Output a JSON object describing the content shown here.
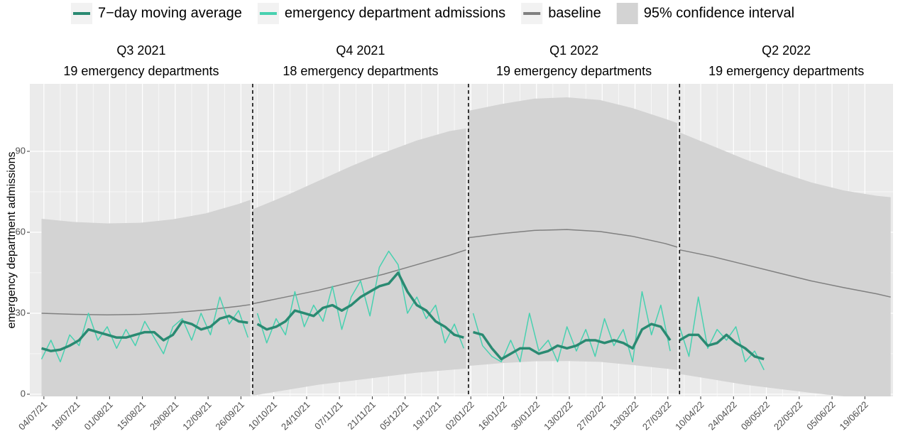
{
  "chart_data": {
    "type": "line",
    "y_label": "emergency department admissions",
    "xlim": [
      "2021-06-28",
      "2022-07-01"
    ],
    "ylim": [
      -0.8,
      115
    ],
    "yticks": [
      0,
      30,
      60,
      90
    ],
    "grid": true,
    "legend": "top",
    "xticks": [
      {
        "value": "2021-07-04",
        "label": "04/07/21"
      },
      {
        "value": "2021-07-18",
        "label": "18/07/21"
      },
      {
        "value": "2021-08-01",
        "label": "01/08/21"
      },
      {
        "value": "2021-08-15",
        "label": "15/08/21"
      },
      {
        "value": "2021-08-29",
        "label": "29/08/21"
      },
      {
        "value": "2021-09-12",
        "label": "12/09/21"
      },
      {
        "value": "2021-09-26",
        "label": "26/09/21"
      },
      {
        "value": "2021-10-10",
        "label": "10/10/21"
      },
      {
        "value": "2021-10-24",
        "label": "24/10/21"
      },
      {
        "value": "2021-11-07",
        "label": "07/11/21"
      },
      {
        "value": "2021-11-21",
        "label": "21/11/21"
      },
      {
        "value": "2021-12-05",
        "label": "05/12/21"
      },
      {
        "value": "2021-12-19",
        "label": "19/12/21"
      },
      {
        "value": "2022-01-02",
        "label": "02/01/22"
      },
      {
        "value": "2022-01-16",
        "label": "16/01/22"
      },
      {
        "value": "2022-01-30",
        "label": "30/01/22"
      },
      {
        "value": "2022-02-13",
        "label": "13/02/22"
      },
      {
        "value": "2022-02-27",
        "label": "27/02/22"
      },
      {
        "value": "2022-03-13",
        "label": "13/03/22"
      },
      {
        "value": "2022-03-27",
        "label": "27/03/22"
      },
      {
        "value": "2022-04-10",
        "label": "10/04/22"
      },
      {
        "value": "2022-04-24",
        "label": "24/04/22"
      },
      {
        "value": "2022-05-08",
        "label": "08/05/22"
      },
      {
        "value": "2022-05-22",
        "label": "22/05/22"
      },
      {
        "value": "2022-06-05",
        "label": "05/06/22"
      },
      {
        "value": "2022-06-19",
        "label": "19/06/22"
      }
    ],
    "vlines": [
      "2021-10-01",
      "2022-01-01",
      "2022-04-01"
    ],
    "panels": [
      {
        "title": "Q3 2021",
        "subtitle": "19 emergency departments"
      },
      {
        "title": "Q4 2021",
        "subtitle": "18 emergency departments"
      },
      {
        "title": "Q1 2022",
        "subtitle": "19 emergency departments"
      },
      {
        "title": "Q2 2022",
        "subtitle": "19 emergency departments"
      }
    ],
    "x": [
      "2021-07-03",
      "2021-07-07",
      "2021-07-11",
      "2021-07-15",
      "2021-07-19",
      "2021-07-23",
      "2021-07-27",
      "2021-07-31",
      "2021-08-04",
      "2021-08-08",
      "2021-08-12",
      "2021-08-16",
      "2021-08-20",
      "2021-08-24",
      "2021-08-28",
      "2021-09-01",
      "2021-09-05",
      "2021-09-09",
      "2021-09-13",
      "2021-09-17",
      "2021-09-21",
      "2021-09-25",
      "2021-09-29",
      "2021-10-03",
      "2021-10-07",
      "2021-10-11",
      "2021-10-15",
      "2021-10-19",
      "2021-10-23",
      "2021-10-27",
      "2021-10-31",
      "2021-11-04",
      "2021-11-08",
      "2021-11-12",
      "2021-11-16",
      "2021-11-20",
      "2021-11-24",
      "2021-11-28",
      "2021-12-02",
      "2021-12-06",
      "2021-12-10",
      "2021-12-14",
      "2021-12-18",
      "2021-12-22",
      "2021-12-26",
      "2021-12-30",
      "2022-01-03",
      "2022-01-07",
      "2022-01-11",
      "2022-01-15",
      "2022-01-19",
      "2022-01-23",
      "2022-01-27",
      "2022-01-31",
      "2022-02-04",
      "2022-02-08",
      "2022-02-12",
      "2022-02-16",
      "2022-02-20",
      "2022-02-24",
      "2022-02-28",
      "2022-03-04",
      "2022-03-08",
      "2022-03-12",
      "2022-03-16",
      "2022-03-20",
      "2022-03-24",
      "2022-03-28",
      "2022-04-01",
      "2022-04-05",
      "2022-04-09",
      "2022-04-13",
      "2022-04-17",
      "2022-04-21",
      "2022-04-25",
      "2022-04-29",
      "2022-05-03",
      "2022-05-07"
    ],
    "series": [
      {
        "name": "7−day moving average",
        "color": "#2a8a72",
        "values": [
          17,
          16,
          16.5,
          18,
          20,
          24,
          23,
          22,
          21,
          21,
          22,
          23,
          23,
          20,
          22,
          27,
          26,
          24,
          25,
          28,
          29,
          27,
          26.5,
          26,
          24,
          25,
          27,
          31,
          30,
          29,
          32,
          33,
          31,
          33,
          36,
          38,
          40,
          41,
          45,
          38,
          33,
          31,
          27,
          25,
          22,
          21,
          23,
          22,
          17,
          13,
          15,
          17,
          17,
          15,
          16,
          18,
          17,
          18,
          20,
          20,
          19,
          20,
          19,
          17,
          24,
          26,
          25,
          20,
          20,
          22,
          22,
          18,
          19,
          22,
          19,
          17,
          14,
          13
        ]
      },
      {
        "name": "emergency department admissions",
        "color": "#48d1b0",
        "values": [
          13,
          20,
          12,
          22,
          18,
          30,
          20,
          25,
          17,
          24,
          18,
          27,
          21,
          15,
          25,
          28,
          20,
          30,
          22,
          36,
          26,
          31,
          21,
          30,
          19,
          28,
          22,
          38,
          25,
          33,
          27,
          40,
          24,
          36,
          42,
          29,
          47,
          53,
          48,
          30,
          36,
          28,
          33,
          19,
          26,
          17,
          30,
          18,
          14,
          12,
          20,
          12,
          30,
          16,
          20,
          12,
          25,
          16,
          24,
          14,
          28,
          18,
          24,
          12,
          38,
          22,
          33,
          16,
          25,
          14,
          36,
          17,
          24,
          20,
          25,
          12,
          16,
          9
        ]
      },
      {
        "name": "baseline",
        "color": "#808080",
        "x": [
          "2021-07-03",
          "2021-07-17",
          "2021-07-31",
          "2021-08-14",
          "2021-08-28",
          "2021-09-11",
          "2021-09-25",
          "2021-09-30",
          "2021-10-01",
          "2021-10-15",
          "2021-10-29",
          "2021-11-12",
          "2021-11-26",
          "2021-12-10",
          "2021-12-24",
          "2021-12-31",
          "2022-01-01",
          "2022-01-15",
          "2022-01-29",
          "2022-02-12",
          "2022-02-26",
          "2022-03-12",
          "2022-03-26",
          "2022-03-31",
          "2022-04-01",
          "2022-04-15",
          "2022-04-29",
          "2022-05-13",
          "2022-05-27",
          "2022-06-10",
          "2022-06-24",
          "2022-06-30"
        ],
        "values": [
          30,
          29.6,
          29.4,
          29.6,
          30.2,
          31.2,
          32.6,
          33.2,
          33.5,
          36,
          38.5,
          41.5,
          44.5,
          48,
          51.5,
          53.5,
          58,
          59.5,
          60.7,
          61,
          60.3,
          58.5,
          55.8,
          54.5,
          53.5,
          51,
          48,
          45,
          42,
          39.5,
          37.2,
          36
        ]
      },
      {
        "name": "95% confidence interval",
        "color": "#d3d3d3",
        "type": "band",
        "x": [
          "2021-07-03",
          "2021-07-17",
          "2021-07-31",
          "2021-08-14",
          "2021-08-28",
          "2021-09-11",
          "2021-09-25",
          "2021-09-30",
          "2021-10-01",
          "2021-10-15",
          "2021-10-29",
          "2021-11-12",
          "2021-11-26",
          "2021-12-10",
          "2021-12-24",
          "2021-12-31",
          "2022-01-01",
          "2022-01-15",
          "2022-01-29",
          "2022-02-12",
          "2022-02-26",
          "2022-03-12",
          "2022-03-26",
          "2022-03-31",
          "2022-04-01",
          "2022-04-15",
          "2022-04-29",
          "2022-05-13",
          "2022-05-27",
          "2022-06-10",
          "2022-06-24",
          "2022-06-30"
        ],
        "lower": [
          -5,
          -6,
          -6.5,
          -6,
          -5,
          -4,
          -2,
          -1.5,
          -0.5,
          1.5,
          3.5,
          5,
          6.5,
          8,
          9,
          9.5,
          10.5,
          11.5,
          12.2,
          12.3,
          12,
          10.8,
          9.5,
          9,
          7.5,
          5.5,
          3.5,
          2,
          0.5,
          -0.8,
          -1.5,
          -2
        ],
        "upper": [
          65,
          63.8,
          63.3,
          63.5,
          64.8,
          67,
          70.5,
          72,
          68.5,
          73.5,
          79,
          84.5,
          89.5,
          94,
          97.5,
          98.5,
          105,
          107.5,
          109.5,
          110,
          109,
          106,
          102,
          100.5,
          97,
          92,
          87,
          82.5,
          78.5,
          75.5,
          73.5,
          73
        ]
      }
    ]
  }
}
